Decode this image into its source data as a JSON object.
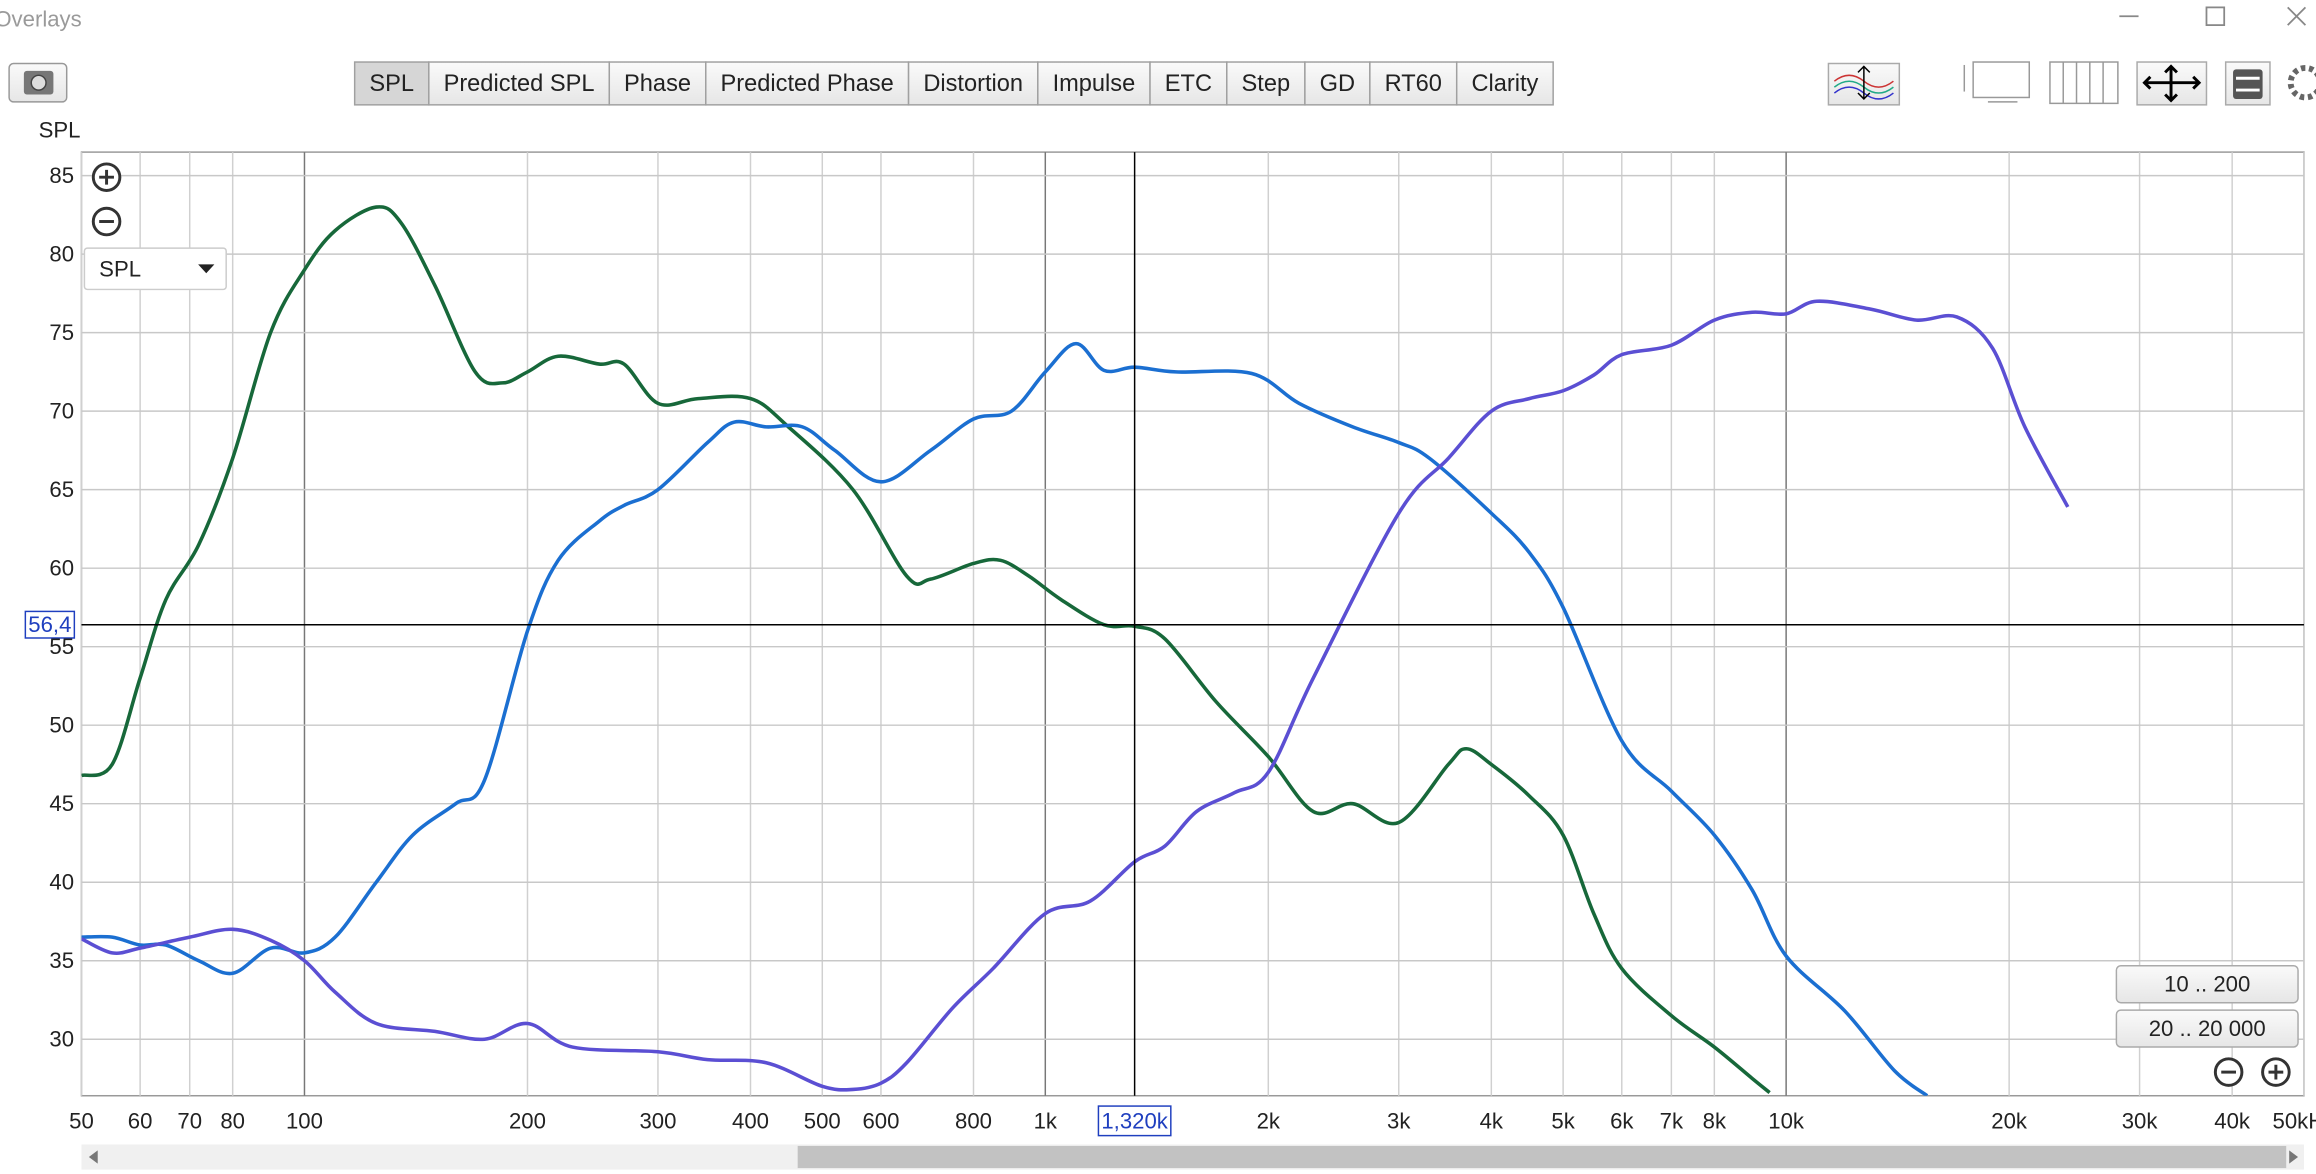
{
  "window": {
    "title": "Overlays"
  },
  "toolbar": {
    "tabs": [
      "SPL",
      "Predicted SPL",
      "Phase",
      "Predicted Phase",
      "Distortion",
      "Impulse",
      "ETC",
      "Step",
      "GD",
      "RT60",
      "Clarity"
    ],
    "active": 0
  },
  "chart_data": {
    "type": "line",
    "y_label": "SPL",
    "selector": "SPL",
    "x_scale": "log",
    "grid": true,
    "xlim": [
      50,
      50000
    ],
    "ylim": [
      26.4,
      86.5
    ],
    "xticks": [
      50,
      60,
      70,
      80,
      100,
      200,
      300,
      400,
      500,
      600,
      800,
      {
        "value": 1000,
        "label": "1k"
      },
      {
        "value": 2000,
        "label": "2k"
      },
      {
        "value": 3000,
        "label": "3k"
      },
      {
        "value": 4000,
        "label": "4k"
      },
      {
        "value": 5000,
        "label": "5k"
      },
      {
        "value": 6000,
        "label": "6k"
      },
      {
        "value": 7000,
        "label": "7k"
      },
      {
        "value": 8000,
        "label": "8k"
      },
      {
        "value": 10000,
        "label": "10k"
      },
      {
        "value": 20000,
        "label": "20k"
      },
      {
        "value": 30000,
        "label": "30k"
      },
      {
        "value": 40000,
        "label": "40k"
      },
      {
        "value": 50000,
        "label": "50kHz"
      }
    ],
    "yticks": [
      30,
      35,
      40,
      45,
      50,
      55,
      60,
      65,
      70,
      75,
      80,
      85
    ],
    "cursor": {
      "x": 1320,
      "x_label": "1,320k",
      "y": 56.4,
      "y_label": "56,4"
    },
    "series": [
      {
        "color": "#17683a",
        "x": [
          50,
          55,
          60,
          65,
          72,
          80,
          90,
          100,
          110,
          125,
          135,
          150,
          170,
          185,
          200,
          220,
          250,
          270,
          300,
          340,
          400,
          450,
          550,
          650,
          700,
          800,
          870,
          950,
          1050,
          1200,
          1320,
          1450,
          1700,
          2000,
          2300,
          2600,
          3000,
          3500,
          3700,
          4000,
          4500,
          5000,
          5500,
          6000,
          7000,
          8000,
          9000,
          9500
        ],
        "values": [
          46.8,
          47.5,
          53,
          58,
          61.5,
          67,
          75,
          79,
          81.5,
          83,
          82,
          78,
          72.5,
          71.8,
          72.5,
          73.5,
          73,
          73,
          70.5,
          70.8,
          70.8,
          69,
          65,
          59.5,
          59.3,
          60.3,
          60.5,
          59.5,
          58,
          56.4,
          56.3,
          55.5,
          51.5,
          48,
          44.5,
          45,
          43.8,
          47.5,
          48.5,
          47.5,
          45.5,
          43,
          38,
          34.5,
          31.5,
          29.5,
          27.5,
          26.6
        ]
      },
      {
        "color": "#1b6fd1",
        "x": [
          50,
          55,
          60,
          65,
          72,
          80,
          90,
          100,
          110,
          125,
          140,
          160,
          175,
          200,
          220,
          250,
          270,
          300,
          350,
          380,
          420,
          470,
          520,
          600,
          700,
          800,
          900,
          1000,
          1100,
          1200,
          1320,
          1500,
          1900,
          2200,
          2600,
          3000,
          3300,
          4000,
          4500,
          5000,
          6000,
          7000,
          8000,
          9000,
          10000,
          12000,
          14000,
          15500
        ],
        "values": [
          36.5,
          36.5,
          36,
          36,
          35,
          34.2,
          35.8,
          35.5,
          36.5,
          40,
          43,
          45,
          46.5,
          56,
          60.5,
          63,
          64,
          65,
          68,
          69.3,
          69,
          69,
          67.5,
          65.5,
          67.5,
          69.5,
          70,
          72.5,
          74.3,
          72.6,
          72.8,
          72.5,
          72.4,
          70.5,
          69,
          68,
          67,
          63.5,
          61,
          57.5,
          49,
          45.8,
          43,
          39.5,
          35.3,
          31.8,
          28,
          26.4
        ]
      },
      {
        "color": "#5b4fd3",
        "x": [
          50,
          55,
          60,
          70,
          80,
          90,
          100,
          110,
          125,
          150,
          175,
          200,
          230,
          300,
          350,
          420,
          500,
          550,
          600,
          650,
          750,
          850,
          1000,
          1150,
          1320,
          1450,
          1600,
          1800,
          2000,
          2300,
          3000,
          3500,
          4000,
          4500,
          5000,
          5500,
          6000,
          7000,
          8000,
          9000,
          10000,
          11000,
          13000,
          15000,
          17000,
          19000,
          21000,
          24000
        ],
        "values": [
          36.4,
          35.5,
          35.8,
          36.5,
          37,
          36.3,
          35,
          33,
          31,
          30.5,
          30,
          31,
          29.5,
          29.2,
          28.7,
          28.5,
          27,
          26.8,
          27.2,
          28.5,
          32,
          34.5,
          38,
          38.8,
          41.3,
          42.3,
          44.5,
          45.7,
          47,
          53,
          63.5,
          67,
          70,
          70.8,
          71.3,
          72.3,
          73.6,
          74.2,
          75.8,
          76.3,
          76.2,
          77,
          76.5,
          75.8,
          76,
          74,
          69,
          63.9
        ]
      }
    ]
  },
  "range_buttons": [
    "10 .. 200",
    "20 .. 20 000"
  ]
}
